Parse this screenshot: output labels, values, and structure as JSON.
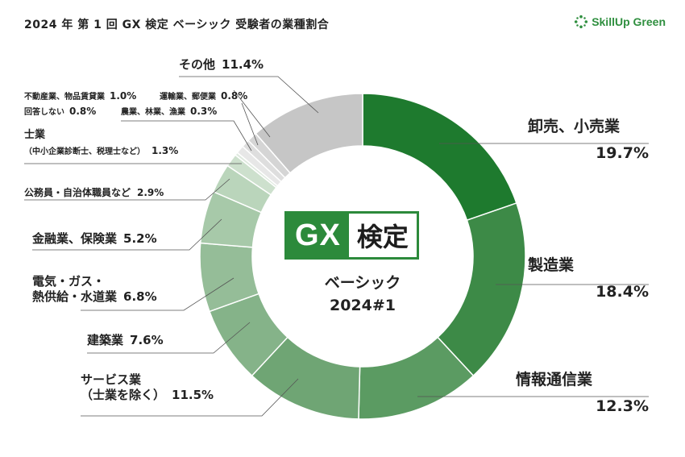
{
  "header": {
    "title": "2024 年 第 1 回 GX 検定 ベーシック 受験者の業種割合",
    "brand": "SkillUp Green"
  },
  "center": {
    "logo_gx": "GX",
    "logo_kentei": "検定",
    "line1": "ベーシック",
    "line2": "2024#1"
  },
  "chart_data": {
    "type": "pie",
    "donut": true,
    "slices": [
      {
        "label": "卸売、小売業",
        "value": 19.7,
        "value_label": "19.7%",
        "color": "#1e7a2e"
      },
      {
        "label": "製造業",
        "value": 18.4,
        "value_label": "18.4%",
        "color": "#3d8a47"
      },
      {
        "label": "情報通信業",
        "value": 12.3,
        "value_label": "12.3%",
        "color": "#5b9b62"
      },
      {
        "label": "サービス業",
        "sublabel": "（士業を除く）",
        "value": 11.5,
        "value_label": "11.5%",
        "color": "#6fa574"
      },
      {
        "label": "建築業",
        "value": 7.6,
        "value_label": "7.6%",
        "color": "#85b389"
      },
      {
        "label": "電気・ガス・",
        "sublabel": "熱供給・水道業",
        "value": 6.8,
        "value_label": "6.8%",
        "color": "#95bd98"
      },
      {
        "label": "金融業、保険業",
        "value": 5.2,
        "value_label": "5.2%",
        "color": "#a7c9a9"
      },
      {
        "label": "公務員・自治体職員など",
        "value": 2.9,
        "value_label": "2.9%",
        "color": "#bad5bb"
      },
      {
        "label": "士業",
        "sublabel": "（中小企業診断士、税理士など）",
        "value": 1.3,
        "value_label": "1.3%",
        "color": "#cde0cd"
      },
      {
        "label": "農業、林業、漁業",
        "value": 0.3,
        "value_label": "0.3%",
        "color": "#dfe9df"
      },
      {
        "label": "回答しない",
        "value": 0.8,
        "value_label": "0.8%",
        "color": "#e7e7e7"
      },
      {
        "label": "運輸業、郵便業",
        "value": 0.8,
        "value_label": "0.8%",
        "color": "#dedede"
      },
      {
        "label": "不動産業、物品賃貸業",
        "value": 1.0,
        "value_label": "1.0%",
        "color": "#d5d5d5"
      },
      {
        "label": "その他",
        "value": 11.4,
        "value_label": "11.4%",
        "color": "#c6c6c6"
      }
    ]
  }
}
